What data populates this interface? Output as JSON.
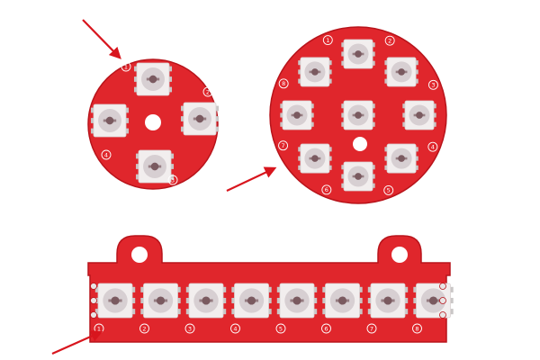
{
  "photo": {
    "background": "#ffffff",
    "boards": [
      {
        "name": "small-ring",
        "shape": "ring",
        "led_count": 4,
        "silk_numbers": [
          "1",
          "2",
          "3",
          "4"
        ]
      },
      {
        "name": "large-ring",
        "shape": "ring",
        "led_count": 8,
        "center_led": true,
        "silk_numbers": [
          "1",
          "2",
          "3",
          "4",
          "5",
          "6",
          "7",
          "8"
        ]
      },
      {
        "name": "stick",
        "shape": "stick",
        "led_count": 8,
        "silk_numbers": [
          "1",
          "2",
          "3",
          "4",
          "5",
          "6",
          "7",
          "8"
        ]
      }
    ],
    "arrow_count": 3,
    "colors": {
      "pcb": "#e0262c",
      "pcb_edge": "#b8141b",
      "silkscreen": "#ffffff",
      "led_body": "#f2eeee",
      "led_lens": "#d7cfd2",
      "led_die": "#7a5a60",
      "led_pin": "#c9c6c6",
      "arrow": "#d8151d"
    }
  }
}
